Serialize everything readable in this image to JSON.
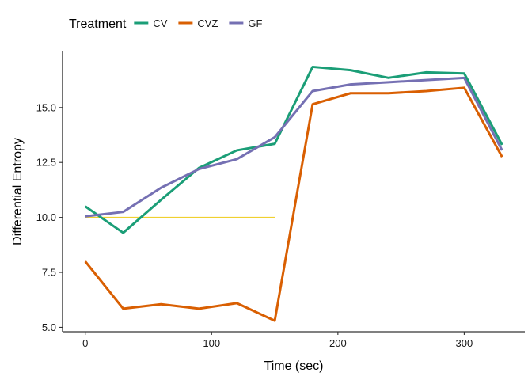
{
  "chart_data": {
    "type": "line",
    "xlabel": "Time (sec)",
    "ylabel": "Differential Entropy",
    "xlim": [
      -18,
      348
    ],
    "ylim": [
      4.8,
      17.55
    ],
    "xticks": [
      0,
      100,
      200,
      300
    ],
    "xtick_labels": [
      "0",
      "100",
      "200",
      "300"
    ],
    "yticks": [
      5.0,
      7.5,
      10.0,
      12.5,
      15.0
    ],
    "ytick_labels": [
      "5.0",
      "7.5",
      "10.0",
      "12.5",
      "15.0"
    ],
    "grid": false,
    "legend": {
      "title": "Treatment",
      "position": "top-left"
    },
    "series": [
      {
        "name": "CV",
        "color": "#1b9e77",
        "x": [
          0,
          30,
          60,
          90,
          120,
          150,
          180,
          210,
          240,
          270,
          300,
          330
        ],
        "y": [
          10.5,
          9.3,
          10.8,
          12.25,
          13.05,
          13.35,
          16.85,
          16.7,
          16.35,
          16.6,
          16.55,
          13.3
        ]
      },
      {
        "name": "CVZ",
        "color": "#d95f02",
        "x": [
          0,
          30,
          60,
          90,
          120,
          150,
          180,
          210,
          240,
          270,
          300,
          330
        ],
        "y": [
          8.0,
          5.85,
          6.05,
          5.85,
          6.1,
          5.3,
          15.15,
          15.65,
          15.65,
          15.75,
          15.9,
          12.75
        ]
      },
      {
        "name": "GF",
        "color": "#7570b3",
        "x": [
          0,
          30,
          60,
          90,
          120,
          150,
          180,
          210,
          240,
          270,
          300,
          330
        ],
        "y": [
          10.05,
          10.25,
          11.35,
          12.2,
          12.65,
          13.65,
          15.75,
          16.05,
          16.15,
          16.25,
          16.35,
          13.05
        ]
      }
    ],
    "reference_line": {
      "color": "#f0d030",
      "x": [
        0,
        150
      ],
      "y": [
        10.0,
        10.0
      ]
    }
  }
}
